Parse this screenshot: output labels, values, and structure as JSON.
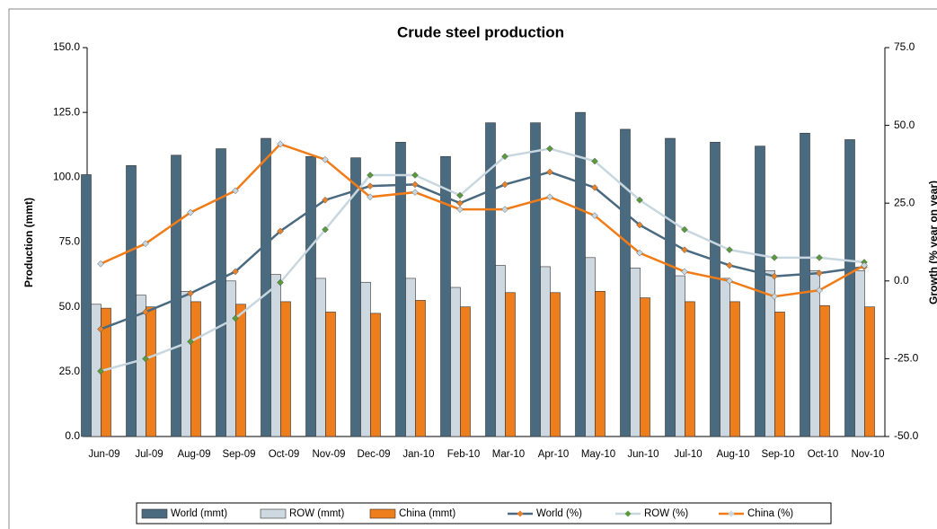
{
  "chart_data": {
    "type": "bar",
    "title": "Crude steel production",
    "ylabel": "Production (mmt)",
    "y2label": "Growth (% year on year)",
    "categories": [
      "Jun-09",
      "Jul-09",
      "Aug-09",
      "Sep-09",
      "Oct-09",
      "Nov-09",
      "Dec-09",
      "Jan-10",
      "Feb-10",
      "Mar-10",
      "Apr-10",
      "May-10",
      "Jun-10",
      "Jul-10",
      "Aug-10",
      "Sep-10",
      "Oct-10",
      "Nov-10"
    ],
    "series": [
      {
        "name": "World (mmt)",
        "type": "bar",
        "color": "#4a6a80",
        "values": [
          101,
          104.5,
          108.5,
          111,
          115,
          108,
          107.5,
          113.5,
          108,
          121,
          121,
          125,
          118.5,
          115,
          113.5,
          112,
          117,
          114.5
        ]
      },
      {
        "name": "ROW (mmt)",
        "type": "bar",
        "color": "#cdd8e0",
        "values": [
          51,
          54.5,
          56,
          60,
          62.5,
          61,
          59.5,
          61,
          57.5,
          66,
          65.5,
          69,
          65,
          62,
          61,
          64,
          64,
          64
        ]
      },
      {
        "name": "China (mmt)",
        "type": "bar",
        "color": "#ee7d1c",
        "values": [
          49.5,
          50,
          52,
          51,
          52,
          48,
          47.5,
          52.5,
          50,
          55.5,
          55.5,
          56,
          53.5,
          52,
          52,
          48,
          50.5,
          50
        ]
      },
      {
        "name": "World (%)",
        "type": "line",
        "axis": "y2",
        "color": "#4a6a80",
        "marker_color": "#e8822a",
        "values": [
          -15.5,
          -10,
          -4,
          3,
          16,
          26,
          30.5,
          31,
          25,
          31,
          35,
          30,
          18,
          10,
          5,
          1.5,
          2.5,
          4.5
        ]
      },
      {
        "name": "ROW (%)",
        "type": "line",
        "axis": "y2",
        "color": "#c8d7df",
        "marker_color": "#5a9a3a",
        "values": [
          -29,
          -25,
          -19.5,
          -12,
          -0.5,
          16.5,
          34,
          34,
          27.5,
          40,
          42.5,
          38.5,
          26,
          16.5,
          10,
          7.5,
          7.5,
          6
        ]
      },
      {
        "name": "China (%)",
        "type": "line",
        "axis": "y2",
        "color": "#f07c18",
        "marker_color": "#c8d7df",
        "values": [
          5.5,
          12,
          22,
          29,
          44,
          39,
          27,
          28.5,
          23,
          23,
          27,
          21,
          9,
          3,
          0,
          -5,
          -3,
          5
        ]
      }
    ],
    "ylim": [
      0,
      150
    ],
    "yticks": [
      {
        "value": 0,
        "label": "0.0"
      },
      {
        "value": 25,
        "label": "25.0"
      },
      {
        "value": 50,
        "label": "50.0"
      },
      {
        "value": 75,
        "label": "75.0"
      },
      {
        "value": 100,
        "label": "100.0"
      },
      {
        "value": 125,
        "label": "125.0"
      },
      {
        "value": 150,
        "label": "150.0"
      }
    ],
    "y2lim": [
      -50,
      75
    ],
    "y2ticks": [
      {
        "value": -50,
        "label": "-50.0"
      },
      {
        "value": -25,
        "label": "-25.0"
      },
      {
        "value": 0,
        "label": "0.0"
      },
      {
        "value": 25,
        "label": "25.0"
      },
      {
        "value": 50,
        "label": "50.0"
      },
      {
        "value": 75,
        "label": "75.0"
      }
    ],
    "grid": false
  }
}
